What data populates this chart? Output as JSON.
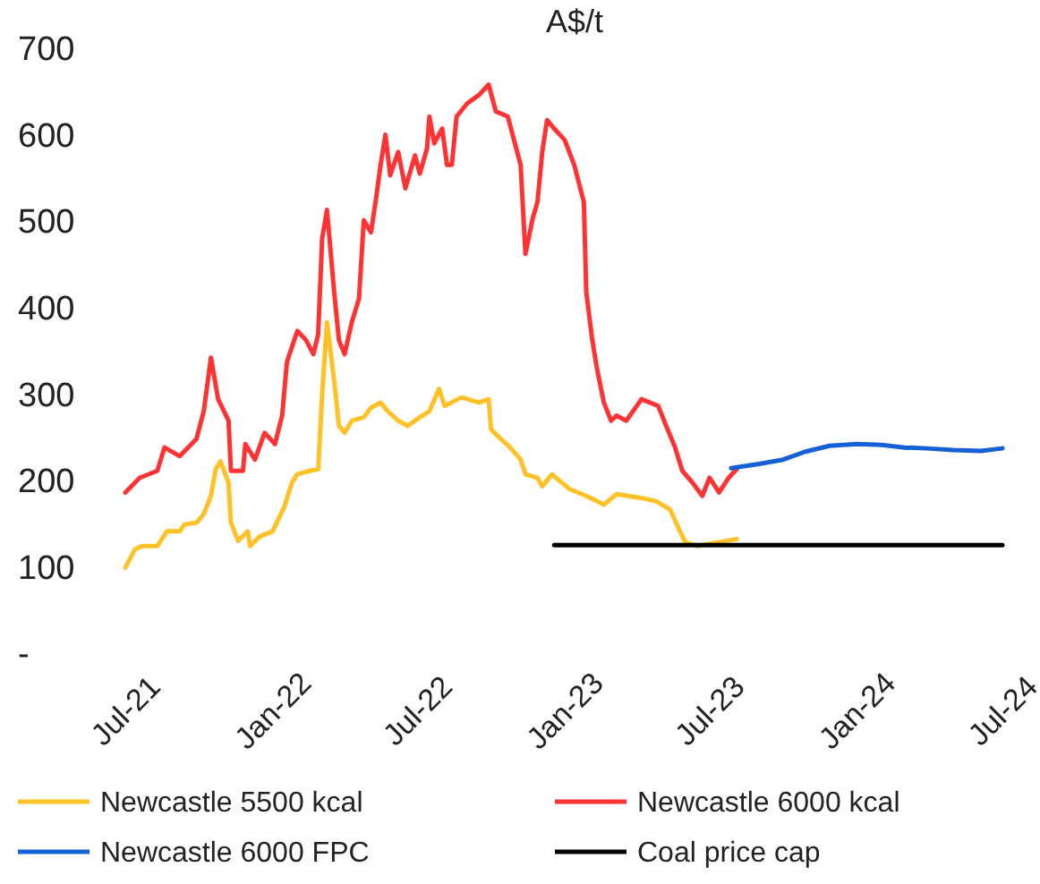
{
  "chart_data": {
    "type": "line",
    "ylabel": "A$/t",
    "xlim": [
      "2021-07-01",
      "2024-07-01"
    ],
    "xticks": [
      {
        "value": "2021-07-01",
        "label": "Jul-21"
      },
      {
        "value": "2022-01-01",
        "label": "Jan-22"
      },
      {
        "value": "2022-07-01",
        "label": "Jul-22"
      },
      {
        "value": "2023-01-01",
        "label": "Jan-23"
      },
      {
        "value": "2023-07-01",
        "label": "Jul-23"
      },
      {
        "value": "2024-01-01",
        "label": "Jan-24"
      },
      {
        "value": "2024-07-01",
        "label": "Jul-24"
      }
    ],
    "ylim": [
      0,
      700
    ],
    "yticks": [
      {
        "value": 0,
        "label": "-"
      },
      100,
      200,
      300,
      400,
      500,
      600,
      700
    ],
    "grid": false,
    "legend": "bottom",
    "marker": "none",
    "line_style": "solid",
    "series": [
      {
        "name": "Newcastle 5500 kcal",
        "color": "#ffc125",
        "x": [
          "2021-07-01",
          "2021-07-13",
          "2021-07-22",
          "2021-08-10",
          "2021-08-22",
          "2021-09-07",
          "2021-09-13",
          "2021-09-28",
          "2021-10-07",
          "2021-10-16",
          "2021-10-22",
          "2021-10-28",
          "2021-11-07",
          "2021-11-10",
          "2021-11-19",
          "2021-12-01",
          "2021-12-04",
          "2021-12-16",
          "2022-01-01",
          "2022-01-16",
          "2022-01-25",
          "2022-02-01",
          "2022-02-16",
          "2022-02-27",
          "2022-03-04",
          "2022-03-10",
          "2022-03-19",
          "2022-03-25",
          "2022-04-01",
          "2022-04-10",
          "2022-04-25",
          "2022-05-04",
          "2022-05-16",
          "2022-05-25",
          "2022-06-07",
          "2022-06-19",
          "2022-07-04",
          "2022-07-16",
          "2022-07-28",
          "2022-08-04",
          "2022-08-25",
          "2022-09-16",
          "2022-09-28",
          "2022-10-01",
          "2022-10-13",
          "2022-10-25",
          "2022-11-07",
          "2022-11-13",
          "2022-11-28",
          "2022-12-04",
          "2022-12-16",
          "2023-01-07",
          "2023-01-28",
          "2023-02-19",
          "2023-03-07",
          "2023-04-04",
          "2023-04-25",
          "2023-05-13",
          "2023-05-25",
          "2023-06-01",
          "2023-06-16",
          "2023-07-10",
          "2023-08-04"
        ],
        "values": [
          99,
          120,
          124,
          124,
          141,
          141,
          149,
          151,
          161,
          182,
          213,
          222,
          197,
          151,
          130,
          141,
          124,
          135,
          141,
          170,
          197,
          207,
          211,
          213,
          300,
          383,
          315,
          263,
          255,
          269,
          273,
          284,
          290,
          280,
          269,
          263,
          273,
          280,
          306,
          286,
          296,
          290,
          294,
          259,
          248,
          238,
          224,
          207,
          203,
          193,
          207,
          190,
          182,
          172,
          184,
          180,
          176,
          166,
          141,
          128,
          124,
          128,
          132
        ]
      },
      {
        "name": "Newcastle 6000 kcal",
        "color": "#ff3333",
        "x": [
          "2021-07-01",
          "2021-07-19",
          "2021-08-10",
          "2021-08-19",
          "2021-09-07",
          "2021-09-28",
          "2021-10-07",
          "2021-10-16",
          "2021-10-25",
          "2021-11-07",
          "2021-11-10",
          "2021-11-25",
          "2021-11-28",
          "2021-12-10",
          "2021-12-22",
          "2022-01-04",
          "2022-01-13",
          "2022-01-19",
          "2022-02-01",
          "2022-02-12",
          "2022-02-21",
          "2022-02-27",
          "2022-03-04",
          "2022-03-10",
          "2022-03-19",
          "2022-03-25",
          "2022-04-01",
          "2022-04-10",
          "2022-04-19",
          "2022-04-25",
          "2022-05-04",
          "2022-05-10",
          "2022-05-16",
          "2022-05-22",
          "2022-05-28",
          "2022-06-07",
          "2022-06-16",
          "2022-06-28",
          "2022-07-04",
          "2022-07-13",
          "2022-07-16",
          "2022-07-22",
          "2022-08-01",
          "2022-08-07",
          "2022-08-13",
          "2022-08-19",
          "2022-09-01",
          "2022-09-16",
          "2022-09-28",
          "2022-10-07",
          "2022-10-22",
          "2022-11-01",
          "2022-11-07",
          "2022-11-13",
          "2022-11-22",
          "2022-11-28",
          "2022-12-04",
          "2022-12-10",
          "2022-12-19",
          "2023-01-01",
          "2023-01-13",
          "2023-01-25",
          "2023-01-28",
          "2023-02-04",
          "2023-02-10",
          "2023-02-19",
          "2023-02-28",
          "2023-03-07",
          "2023-03-19",
          "2023-04-07",
          "2023-04-28",
          "2023-05-07",
          "2023-05-19",
          "2023-05-28",
          "2023-06-10",
          "2023-06-22",
          "2023-07-01",
          "2023-07-13",
          "2023-07-25",
          "2023-08-04"
        ],
        "values": [
          186,
          203,
          211,
          238,
          228,
          248,
          280,
          342,
          294,
          269,
          211,
          211,
          242,
          224,
          255,
          242,
          275,
          337,
          373,
          362,
          346,
          369,
          480,
          513,
          418,
          362,
          346,
          383,
          410,
          501,
          487,
          524,
          565,
          600,
          553,
          580,
          538,
          576,
          555,
          584,
          621,
          590,
          607,
          565,
          565,
          621,
          636,
          646,
          658,
          627,
          621,
          586,
          565,
          462,
          503,
          522,
          580,
          617,
          607,
          594,
          565,
          522,
          418,
          366,
          331,
          290,
          269,
          275,
          269,
          294,
          286,
          265,
          238,
          211,
          197,
          182,
          203,
          186,
          203,
          213
        ]
      },
      {
        "name": "Newcastle 6000 FPC",
        "color": "#1560d4",
        "x": [
          "2023-07-28",
          "2023-09-01",
          "2023-10-01",
          "2023-10-28",
          "2023-11-28",
          "2024-01-01",
          "2024-02-01",
          "2024-03-01",
          "2024-03-28",
          "2024-05-01",
          "2024-06-04",
          "2024-07-01"
        ],
        "values": [
          214,
          219,
          224,
          233,
          240,
          242,
          241,
          238,
          237,
          235,
          234,
          237
        ]
      },
      {
        "name": "Coal price cap",
        "color": "#000000",
        "x": [
          "2022-12-19",
          "2024-07-01"
        ],
        "values": [
          125,
          125
        ]
      }
    ]
  }
}
